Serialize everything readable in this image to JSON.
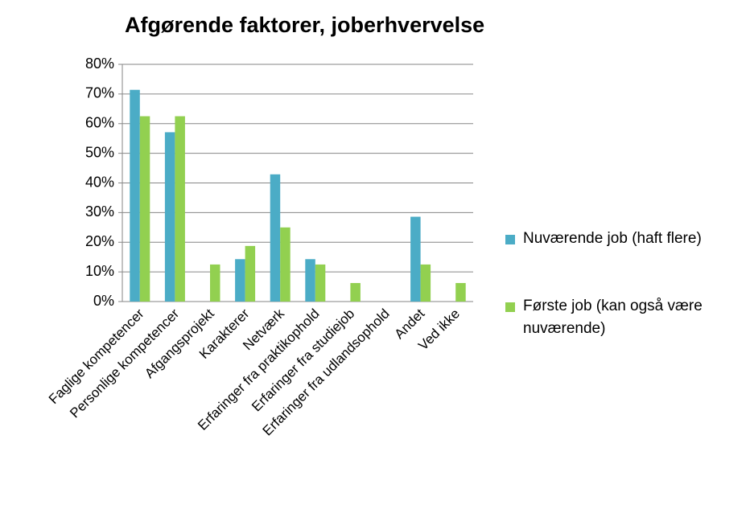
{
  "chart_data": {
    "type": "bar",
    "title": "Afgørende faktorer, joberhvervelse",
    "categories": [
      "Faglige kompetencer",
      "Personlige kompetencer",
      "Afgangsprojekt",
      "Karakterer",
      "Netværk",
      "Erfaringer fra praktikophold",
      "Erfaringer fra studiejob",
      "Erfaringer fra udlandsophold",
      "Andet",
      "Ved ikke"
    ],
    "series": [
      {
        "name": "Nuværende job (haft flere)",
        "color": "#4bacc6",
        "values": [
          71.4,
          57.1,
          0,
          14.3,
          42.9,
          14.3,
          0,
          0,
          28.6,
          0
        ]
      },
      {
        "name": "Første job (kan også være nuværende)",
        "color": "#92d050",
        "values": [
          62.5,
          62.5,
          12.5,
          18.75,
          25,
          12.5,
          6.25,
          0,
          12.5,
          6.25
        ]
      }
    ],
    "ylim": [
      0,
      80
    ],
    "yticks": [
      {
        "value": 0,
        "label": "0%"
      },
      {
        "value": 10,
        "label": "10%"
      },
      {
        "value": 20,
        "label": "20%"
      },
      {
        "value": 30,
        "label": "30%"
      },
      {
        "value": 40,
        "label": "40%"
      },
      {
        "value": 50,
        "label": "50%"
      },
      {
        "value": 60,
        "label": "60%"
      },
      {
        "value": 70,
        "label": "70%"
      },
      {
        "value": 80,
        "label": "80%"
      }
    ],
    "grid": true,
    "legend": "right"
  }
}
